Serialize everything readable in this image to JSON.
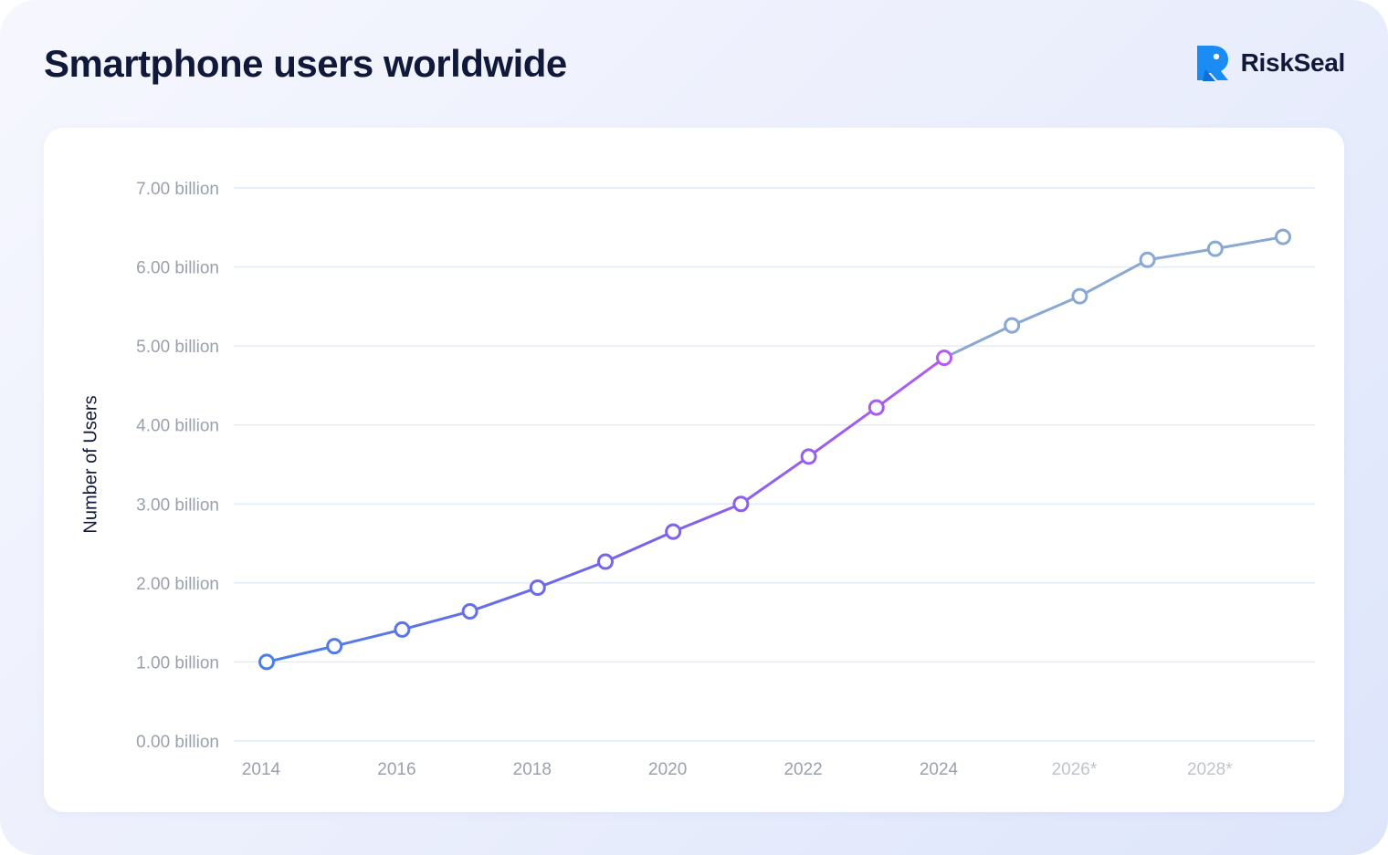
{
  "header": {
    "title": "Smartphone users worldwide",
    "brand_name": "RiskSeal",
    "brand_icon": "riskseal-logo-icon"
  },
  "colors": {
    "historical_start": "#4a80e6",
    "historical_mid": "#7a62e8",
    "historical_end": "#b25cf0",
    "forecast": "#89a8d2",
    "grid": "#e4ecf7",
    "tick_text": "#9aa1ad",
    "tick_text_forecast": "#bfc4cc",
    "title": "#10193a",
    "brand_icon_blue": "#1c8cf5"
  },
  "chart_data": {
    "type": "line",
    "title": "Smartphone users worldwide",
    "xlabel": "",
    "ylabel": "Number of Users",
    "x": [
      2014,
      2015,
      2016,
      2017,
      2018,
      2019,
      2020,
      2021,
      2022,
      2023,
      2024,
      2025,
      2026,
      2027,
      2028,
      2029
    ],
    "x_tick_labels": [
      {
        "x": 2014,
        "label": "2014"
      },
      {
        "x": 2016,
        "label": "2016"
      },
      {
        "x": 2018,
        "label": "2018"
      },
      {
        "x": 2020,
        "label": "2020"
      },
      {
        "x": 2022,
        "label": "2022"
      },
      {
        "x": 2024,
        "label": "2024"
      },
      {
        "x": 2026,
        "label": "2026*",
        "forecast": true
      },
      {
        "x": 2028,
        "label": "2028*",
        "forecast": true
      }
    ],
    "series": [
      {
        "name": "Smartphone users",
        "unit": "billion",
        "values": [
          1.0,
          1.2,
          1.41,
          1.64,
          1.94,
          2.27,
          2.65,
          3.0,
          3.6,
          4.22,
          4.85,
          5.26,
          5.63,
          6.09,
          6.23,
          6.38
        ]
      }
    ],
    "forecast_from": 2024,
    "ylim": [
      0,
      7
    ],
    "y_ticks": [
      0,
      1,
      2,
      3,
      4,
      5,
      6,
      7
    ],
    "y_tick_labels": [
      "0.00 billion",
      "1.00 billion",
      "2.00 billion",
      "3.00 billion",
      "4.00 billion",
      "5.00 billion",
      "6.00 billion",
      "7.00 billion"
    ],
    "grid": true,
    "legend": "none"
  }
}
